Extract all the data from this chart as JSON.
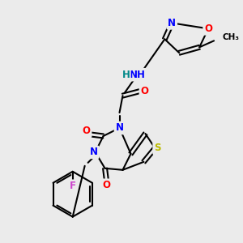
{
  "background_color": "#ebebeb",
  "bond_color": "#000000",
  "atom_colors": {
    "N": "#0000ff",
    "O": "#ff0000",
    "S": "#bbbb00",
    "F": "#cc44cc",
    "H": "#008888",
    "C": "#000000"
  },
  "figsize": [
    3.0,
    3.0
  ],
  "dpi": 100,
  "bond_lw": 1.5,
  "font_size": 8.5
}
